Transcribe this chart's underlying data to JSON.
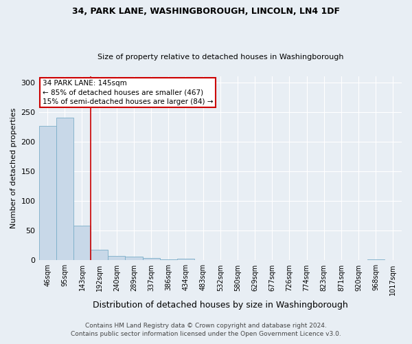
{
  "title1": "34, PARK LANE, WASHINGBOROUGH, LINCOLN, LN4 1DF",
  "title2": "Size of property relative to detached houses in Washingborough",
  "xlabel": "Distribution of detached houses by size in Washingborough",
  "ylabel": "Number of detached properties",
  "categories": [
    "46sqm",
    "95sqm",
    "143sqm",
    "192sqm",
    "240sqm",
    "289sqm",
    "337sqm",
    "386sqm",
    "434sqm",
    "483sqm",
    "532sqm",
    "580sqm",
    "629sqm",
    "677sqm",
    "726sqm",
    "774sqm",
    "823sqm",
    "871sqm",
    "920sqm",
    "968sqm",
    "1017sqm"
  ],
  "values": [
    226,
    240,
    58,
    18,
    7,
    6,
    4,
    2,
    3,
    0,
    0,
    0,
    0,
    0,
    0,
    0,
    0,
    0,
    0,
    2,
    0
  ],
  "bar_color": "#c8d8e8",
  "bar_edge_color": "#7baec8",
  "vline_color": "#cc0000",
  "vline_index": 2,
  "annotation_line1": "34 PARK LANE: 145sqm",
  "annotation_line2": "← 85% of detached houses are smaller (467)",
  "annotation_line3": "15% of semi-detached houses are larger (84) →",
  "annotation_box_color": "#ffffff",
  "annotation_box_edge": "#cc0000",
  "ylim": [
    0,
    310
  ],
  "yticks": [
    0,
    50,
    100,
    150,
    200,
    250,
    300
  ],
  "footer1": "Contains HM Land Registry data © Crown copyright and database right 2024.",
  "footer2": "Contains public sector information licensed under the Open Government Licence v3.0.",
  "bg_color": "#e8eef4",
  "grid_color": "#ffffff",
  "title1_fontsize": 9,
  "title2_fontsize": 8,
  "ylabel_fontsize": 8,
  "xlabel_fontsize": 9,
  "tick_fontsize": 7,
  "footer_fontsize": 6.5
}
